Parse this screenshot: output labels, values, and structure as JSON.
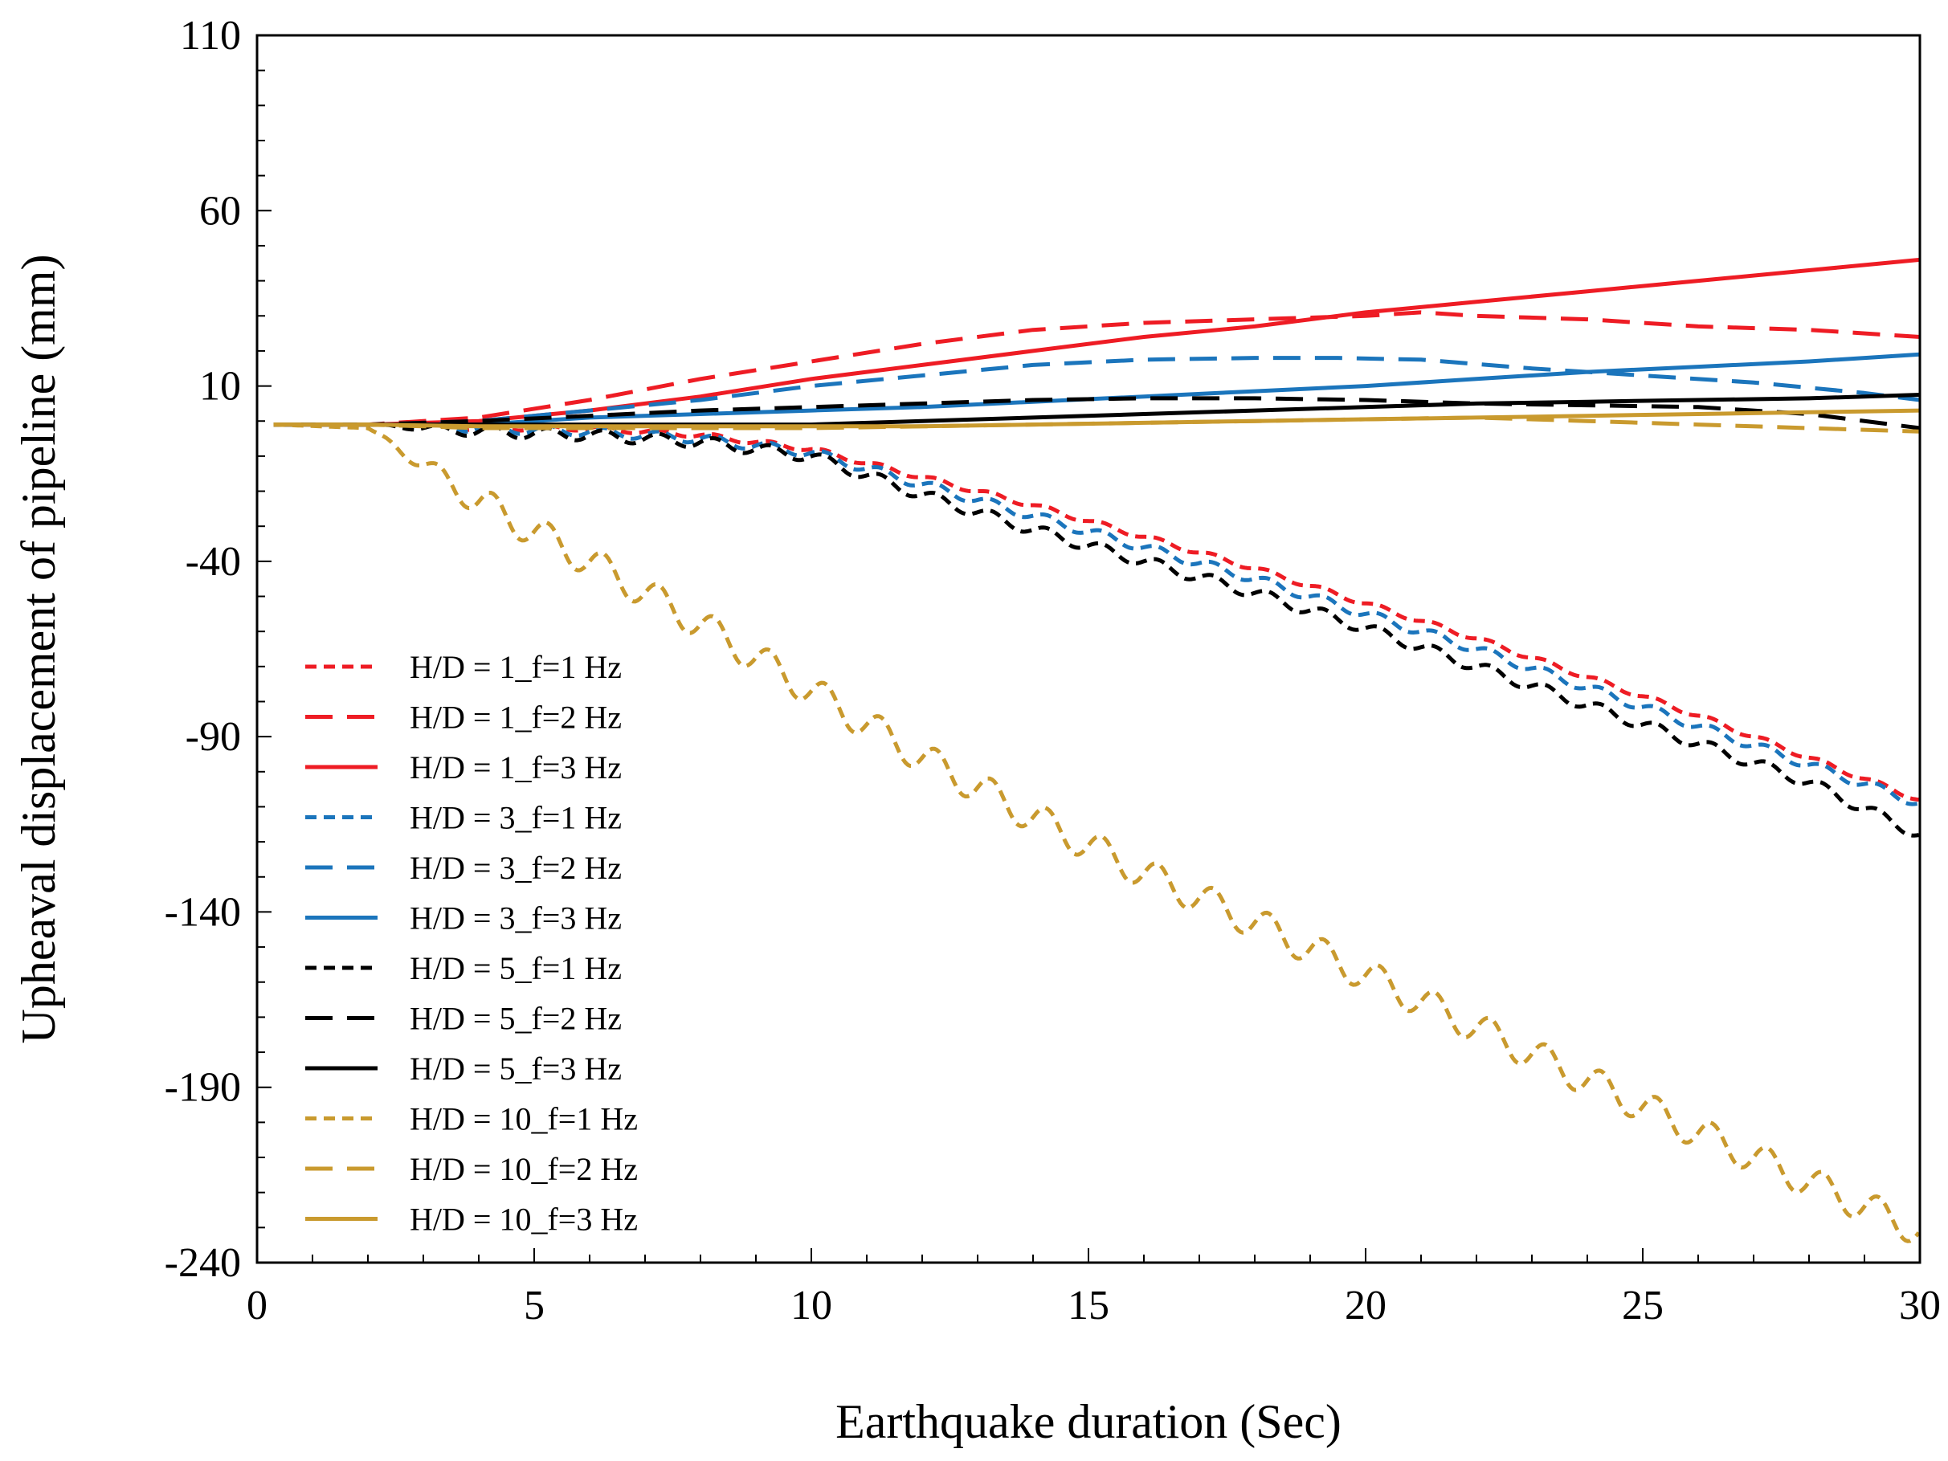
{
  "chart_data": {
    "type": "line",
    "title": "",
    "xlabel": "Earthquake duration (Sec)",
    "ylabel": "Upheaval displacement of pipeline (mm)",
    "xlim": [
      0,
      30
    ],
    "ylim": [
      -240,
      110
    ],
    "xticks": [
      0,
      5,
      10,
      15,
      20,
      25,
      30
    ],
    "yticks": [
      110,
      60,
      10,
      -40,
      -90,
      -140,
      -190,
      -240
    ],
    "xtick_labels": [
      "0",
      "5",
      "10",
      "15",
      "20",
      "25",
      "30"
    ],
    "ytick_labels": [
      "110",
      "60",
      "10",
      "-40",
      "-90",
      "-140",
      "-190",
      "-240"
    ],
    "grid": false,
    "legend_position": "lower-left",
    "series": [
      {
        "name": "H/D = 1_f=1 Hz",
        "color": "#ee1c24",
        "style": "short-dash",
        "x": [
          0.3,
          2,
          4,
          6,
          8,
          10,
          12,
          14,
          16,
          18,
          20,
          22,
          24,
          26,
          28,
          30
        ],
        "y": [
          -1,
          -1,
          -2,
          -2,
          -4,
          -8,
          -16,
          -24,
          -33,
          -42,
          -52,
          -62,
          -73,
          -84,
          -96,
          -108
        ],
        "oscillation": 0.7
      },
      {
        "name": "H/D = 1_f=2 Hz",
        "color": "#ee1c24",
        "style": "long-dash",
        "x": [
          0.3,
          2,
          4,
          6,
          8,
          10,
          12,
          14,
          16,
          18,
          20,
          21,
          22,
          24,
          26,
          28,
          30
        ],
        "y": [
          -1,
          -1,
          1,
          6,
          12,
          17,
          22,
          26,
          28,
          29,
          30,
          31,
          30,
          29,
          27,
          26,
          24
        ]
      },
      {
        "name": "H/D = 1_f=3 Hz",
        "color": "#ee1c24",
        "style": "solid",
        "x": [
          0.3,
          2,
          4,
          6,
          8,
          10,
          12,
          14,
          16,
          18,
          20,
          22,
          24,
          26,
          28,
          30
        ],
        "y": [
          -1,
          -1,
          0,
          3,
          7,
          12,
          16,
          20,
          24,
          27,
          31,
          34,
          37,
          40,
          43,
          46
        ]
      },
      {
        "name": "H/D = 3_f=1 Hz",
        "color": "#1b75bc",
        "style": "short-dash",
        "x": [
          0.3,
          2,
          4,
          6,
          8,
          10,
          12,
          14,
          16,
          18,
          20,
          22,
          24,
          26,
          28,
          30
        ],
        "y": [
          -1,
          -1,
          -2,
          -3,
          -5,
          -9,
          -18,
          -27,
          -36,
          -45,
          -55,
          -65,
          -76,
          -87,
          -98,
          -109
        ],
        "oscillation": 1.3
      },
      {
        "name": "H/D = 3_f=2 Hz",
        "color": "#1b75bc",
        "style": "long-dash",
        "x": [
          0.3,
          2,
          4,
          6,
          8,
          10,
          12,
          14,
          16,
          18,
          19.5,
          21,
          23,
          25,
          27,
          29,
          30
        ],
        "y": [
          -1,
          -1,
          0,
          3,
          6,
          10,
          13,
          16,
          17.5,
          18,
          18,
          17.5,
          15,
          13,
          11,
          8,
          6
        ]
      },
      {
        "name": "H/D = 3_f=3 Hz",
        "color": "#1b75bc",
        "style": "solid",
        "x": [
          0.3,
          2,
          4,
          6,
          8,
          10,
          12,
          14,
          16,
          18,
          20,
          22,
          24,
          26,
          28,
          30
        ],
        "y": [
          -1,
          -1,
          -1,
          1,
          2,
          3,
          4,
          5.5,
          7,
          8.5,
          10,
          12,
          14,
          15.5,
          17,
          19
        ]
      },
      {
        "name": "H/D = 5_f=1 Hz",
        "color": "#000000",
        "style": "short-dash",
        "x": [
          0.3,
          2,
          4,
          6,
          8,
          10,
          12,
          14,
          16,
          18,
          20,
          22,
          24,
          26,
          28,
          30
        ],
        "y": [
          -1,
          -1,
          -3,
          -4,
          -6,
          -10,
          -21,
          -31,
          -40,
          -49,
          -59,
          -70,
          -81,
          -92,
          -103,
          -118
        ],
        "oscillation": 1.6
      },
      {
        "name": "H/D = 5_f=2 Hz",
        "color": "#000000",
        "style": "long-dash",
        "x": [
          0.3,
          2,
          4,
          6,
          8,
          10,
          12,
          14,
          16,
          18,
          20,
          22,
          24,
          26,
          28,
          30
        ],
        "y": [
          -1,
          -1,
          0,
          1.5,
          3,
          4,
          5,
          6,
          6.5,
          6.5,
          6,
          5,
          4.5,
          4,
          2,
          -2
        ]
      },
      {
        "name": "H/D = 5_f=3 Hz",
        "color": "#000000",
        "style": "solid",
        "x": [
          0.3,
          2,
          4,
          6,
          8,
          10,
          12,
          14,
          16,
          18,
          20,
          22,
          24,
          26,
          28,
          30
        ],
        "y": [
          -1,
          -1,
          -1,
          -1,
          -1,
          -1,
          0,
          1,
          2,
          3,
          4,
          5,
          5.5,
          6,
          6.5,
          7.5
        ]
      },
      {
        "name": "H/D = 10_f=1 Hz",
        "color": "#c99a2e",
        "style": "short-dash",
        "x": [
          0.3,
          2,
          4,
          6,
          8,
          10,
          12,
          14,
          16,
          18,
          20,
          22,
          24,
          26,
          28,
          30
        ],
        "y": [
          -1,
          -2,
          -23,
          -40,
          -58,
          -77,
          -96,
          -113,
          -129,
          -143,
          -158,
          -173,
          -188,
          -203,
          -217,
          -231
        ],
        "oscillation": 4.5
      },
      {
        "name": "H/D = 10_f=2 Hz",
        "color": "#c99a2e",
        "style": "long-dash",
        "x": [
          0.3,
          2,
          4,
          6,
          8,
          10,
          12,
          14,
          16,
          18,
          20,
          22,
          24,
          26,
          28,
          30
        ],
        "y": [
          -1,
          -1,
          -2,
          -2,
          -2,
          -2,
          -1.5,
          -1,
          -0.5,
          0,
          0.5,
          1,
          0,
          -1,
          -2,
          -3
        ]
      },
      {
        "name": "H/D = 10_f=3 Hz",
        "color": "#c99a2e",
        "style": "solid",
        "x": [
          0.3,
          2,
          4,
          6,
          8,
          10,
          12,
          14,
          16,
          18,
          20,
          22,
          24,
          26,
          28,
          30
        ],
        "y": [
          -1,
          -1,
          -1.5,
          -1.5,
          -1.5,
          -1.5,
          -1.5,
          -1,
          -0.5,
          0,
          0.5,
          1,
          1.5,
          2,
          2.5,
          3
        ]
      }
    ],
    "legend_labels": [
      "H/D = 1_f=1 Hz",
      "H/D = 1_f=2 Hz",
      "H/D = 1_f=3 Hz",
      "H/D = 3_f=1 Hz",
      "H/D = 3_f=2 Hz",
      "H/D = 3_f=3 Hz",
      "H/D = 5_f=1 Hz",
      "H/D = 5_f=2 Hz",
      "H/D = 5_f=3 Hz",
      "H/D = 10_f=1 Hz",
      "H/D = 10_f=2 Hz",
      "H/D = 10_f=3 Hz"
    ]
  }
}
